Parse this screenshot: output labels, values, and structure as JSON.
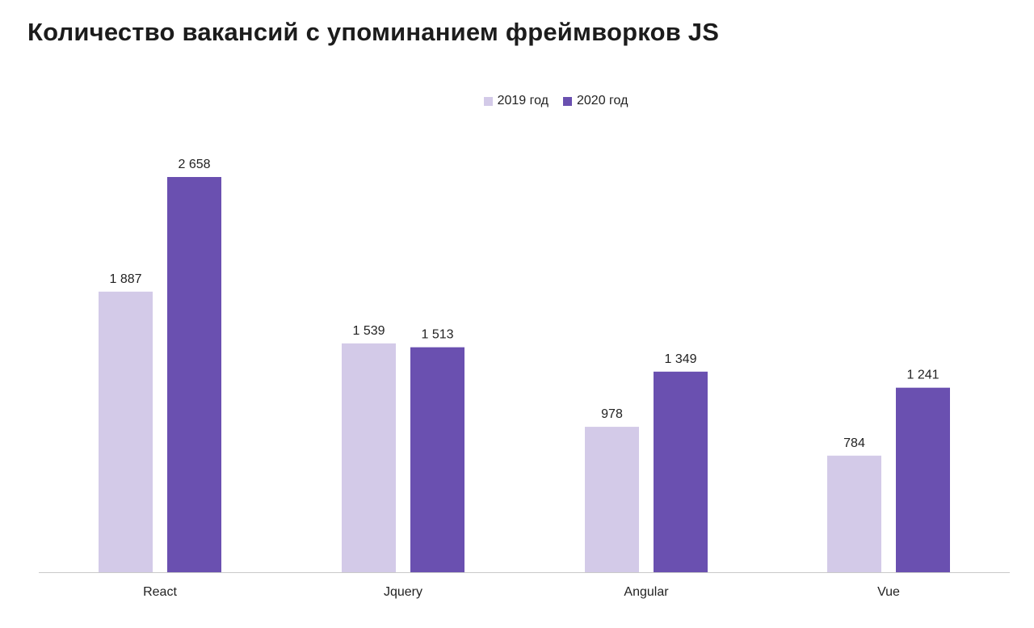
{
  "chart_data": {
    "type": "bar",
    "title": "Количество вакансий с упоминанием фреймворков JS",
    "categories": [
      "React",
      "Jquery",
      "Angular",
      "Vue"
    ],
    "series": [
      {
        "name": "2019 год",
        "color": "#d3cae8",
        "values": [
          1887,
          1539,
          978,
          784
        ],
        "labels": [
          "1 887",
          "1 539",
          "978",
          "784"
        ]
      },
      {
        "name": "2020 год",
        "color": "#6a50b0",
        "values": [
          2658,
          1513,
          1349,
          1241
        ],
        "labels": [
          "2 658",
          "1 513",
          "1 349",
          "1 241"
        ]
      }
    ],
    "ylim": [
      0,
      2658
    ],
    "legend_position": "top-center",
    "grid": false,
    "xlabel": "",
    "ylabel": ""
  }
}
